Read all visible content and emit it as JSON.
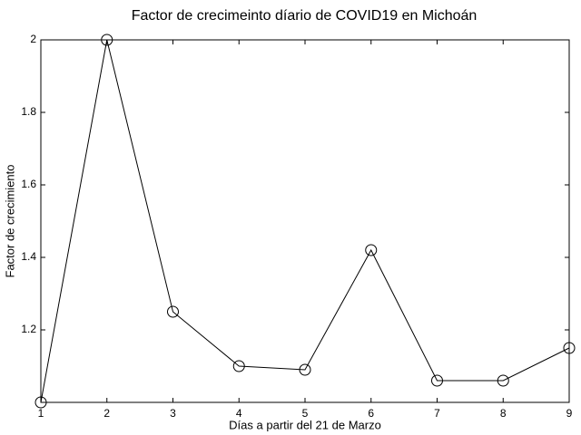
{
  "chart_data": {
    "type": "line",
    "title": "Factor de crecimeinto díario de COVID19 en Michoán",
    "x_label": "Días a partir del 21 de Marzo",
    "y_label": "Factor de crecimiento",
    "x": [
      1,
      2,
      3,
      4,
      5,
      6,
      7,
      8,
      9
    ],
    "values": [
      1,
      2,
      1.25,
      1.1,
      1.09,
      1.42,
      1.06,
      1.06,
      1.15
    ],
    "color": "#000000",
    "xlim": [
      1,
      9
    ],
    "xticks": [
      1,
      2,
      3,
      4,
      5,
      6,
      7,
      8,
      9
    ],
    "ylim": [
      1,
      2
    ],
    "yticks": [
      1.2,
      1.4,
      1.6,
      1.8,
      2
    ],
    "grid": false
  }
}
